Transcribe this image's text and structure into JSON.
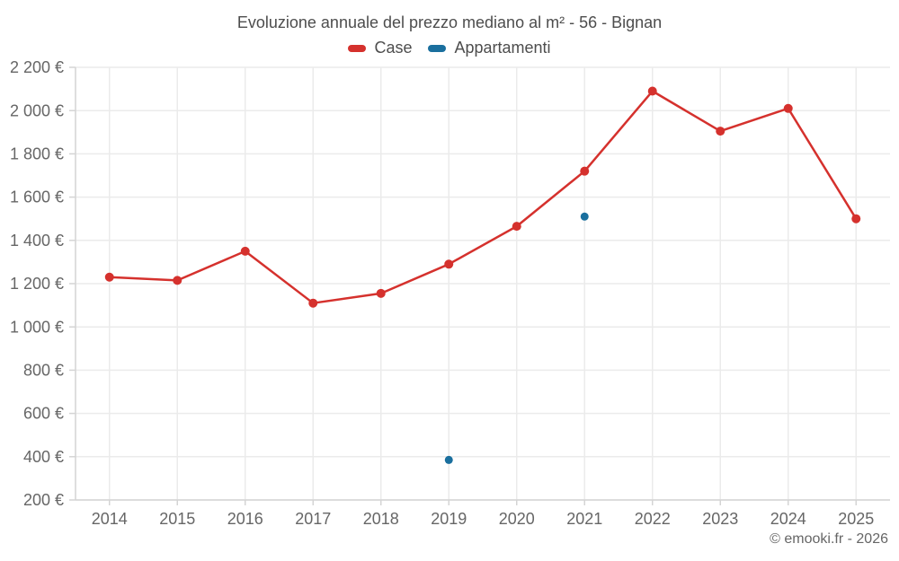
{
  "title": "Evoluzione annuale del prezzo mediano al m² - 56 - Bignan",
  "copyright": "© emooki.fr - 2026",
  "legend": [
    {
      "label": "Case",
      "color": "#d5312d"
    },
    {
      "label": "Appartamenti",
      "color": "#1a6f9e"
    }
  ],
  "colors": {
    "background": "#ffffff",
    "title_text": "#4d4d4d",
    "axis_text": "#666666",
    "grid": "#ebebeb",
    "axis_line": "#d4d4d4",
    "case_red": "#d5312d",
    "appartamenti_blue": "#1a6f9e"
  },
  "chart_data": {
    "type": "line",
    "title": "Evoluzione annuale del prezzo mediano al m² - 56 - Bignan",
    "categories": [
      "2014",
      "2015",
      "2016",
      "2017",
      "2018",
      "2019",
      "2020",
      "2021",
      "2022",
      "2023",
      "2024",
      "2025"
    ],
    "series": [
      {
        "name": "Case",
        "color": "#d5312d",
        "draw_line": true,
        "point_radius": 5,
        "values": [
          1230,
          1215,
          1350,
          1110,
          1155,
          1290,
          1465,
          1720,
          2090,
          1905,
          2010,
          1500
        ]
      },
      {
        "name": "Appartamenti",
        "color": "#1a6f9e",
        "draw_line": false,
        "point_radius": 4.5,
        "values": [
          null,
          null,
          null,
          null,
          null,
          385,
          null,
          1510,
          null,
          null,
          null,
          null
        ]
      }
    ],
    "xlabel": "",
    "ylabel": "",
    "ylim": [
      200,
      2200
    ],
    "y_ticks": [
      200,
      400,
      600,
      800,
      1000,
      1200,
      1400,
      1600,
      1800,
      2000,
      2200
    ],
    "y_tick_labels": [
      "200 €",
      "400 €",
      "600 €",
      "800 €",
      "1 000 €",
      "1 200 €",
      "1 400 €",
      "1 600 €",
      "1 800 €",
      "2 000 €",
      "2 200 €"
    ],
    "grid": true,
    "legend_position": "top"
  }
}
